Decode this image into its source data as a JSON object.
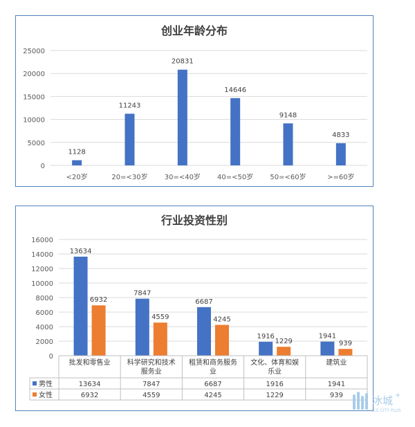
{
  "chart_data": [
    {
      "type": "bar",
      "title": "创业年龄分布",
      "categories": [
        "<20岁",
        "20=<30岁",
        "30=<40岁",
        "40=<50岁",
        "50=<60岁",
        ">=60岁"
      ],
      "values": [
        1128,
        11243,
        20831,
        14646,
        9148,
        4833
      ],
      "ylim": [
        0,
        25000
      ],
      "yticks": [
        "0",
        "5000",
        "10000",
        "15000",
        "20000",
        "25000"
      ],
      "grid": true,
      "color": "#4472c4"
    },
    {
      "type": "bar",
      "title": "行业投资性别",
      "categories": [
        "批发和零售业",
        "科学研究和技术服务业",
        "租赁和商务服务业",
        "文化、体育和娱乐业",
        "建筑业"
      ],
      "series": [
        {
          "name": "男性",
          "values": [
            13634,
            7847,
            6687,
            1916,
            1941
          ],
          "color": "#4472c4"
        },
        {
          "name": "女性",
          "values": [
            6932,
            4559,
            4245,
            1229,
            939
          ],
          "color": "#ed7d31"
        }
      ],
      "ylim": [
        0,
        16000
      ],
      "yticks": [
        "0",
        "2000",
        "4000",
        "6000",
        "8000",
        "10000",
        "12000",
        "14000",
        "16000"
      ],
      "grid": true,
      "legend": "data-table"
    }
  ],
  "watermark": {
    "text": "冰城",
    "sub": "ICE CITY PLUS",
    "color": "#a9cce9"
  }
}
